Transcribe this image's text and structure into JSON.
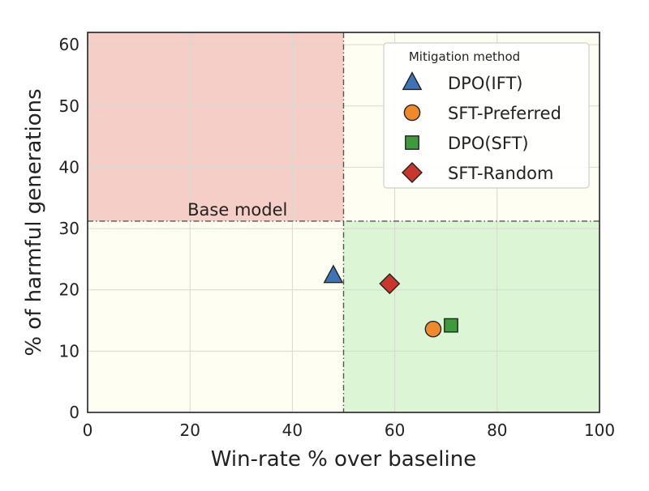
{
  "chart_data": {
    "type": "scatter",
    "xlabel": "Win-rate % over baseline",
    "ylabel": "% of harmful generations",
    "xlim": [
      0,
      100
    ],
    "ylim": [
      0,
      62
    ],
    "xticks": [
      0,
      20,
      40,
      60,
      80,
      100
    ],
    "yticks": [
      0,
      10,
      20,
      30,
      40,
      50,
      60
    ],
    "grid": true,
    "baseline": {
      "x": 50,
      "y": 31.2,
      "label": "Base model"
    },
    "regions": [
      {
        "name": "worse-harm-worse-winrate",
        "x": [
          0,
          50
        ],
        "y": [
          31.2,
          62
        ],
        "color": "#f5cfc7"
      },
      {
        "name": "better-harm-better-winrate",
        "x": [
          50,
          100
        ],
        "y": [
          0,
          31.2
        ],
        "color": "#dcf5d5"
      },
      {
        "name": "neutral",
        "color": "#fefef2"
      }
    ],
    "legend": {
      "title": "Mitigation method",
      "position": "top-right"
    },
    "series": [
      {
        "name": "DPO(IFT)",
        "marker": "triangle",
        "color": "#3d73b7",
        "x": [
          48
        ],
        "y": [
          22.3
        ]
      },
      {
        "name": "SFT-Preferred",
        "marker": "circle",
        "color": "#ee8a2c",
        "x": [
          67.5
        ],
        "y": [
          13.6
        ]
      },
      {
        "name": "DPO(SFT)",
        "marker": "square",
        "color": "#3f9a3c",
        "x": [
          71
        ],
        "y": [
          14.2
        ]
      },
      {
        "name": "SFT-Random",
        "marker": "diamond",
        "color": "#c9372c",
        "x": [
          59
        ],
        "y": [
          21
        ]
      }
    ]
  }
}
